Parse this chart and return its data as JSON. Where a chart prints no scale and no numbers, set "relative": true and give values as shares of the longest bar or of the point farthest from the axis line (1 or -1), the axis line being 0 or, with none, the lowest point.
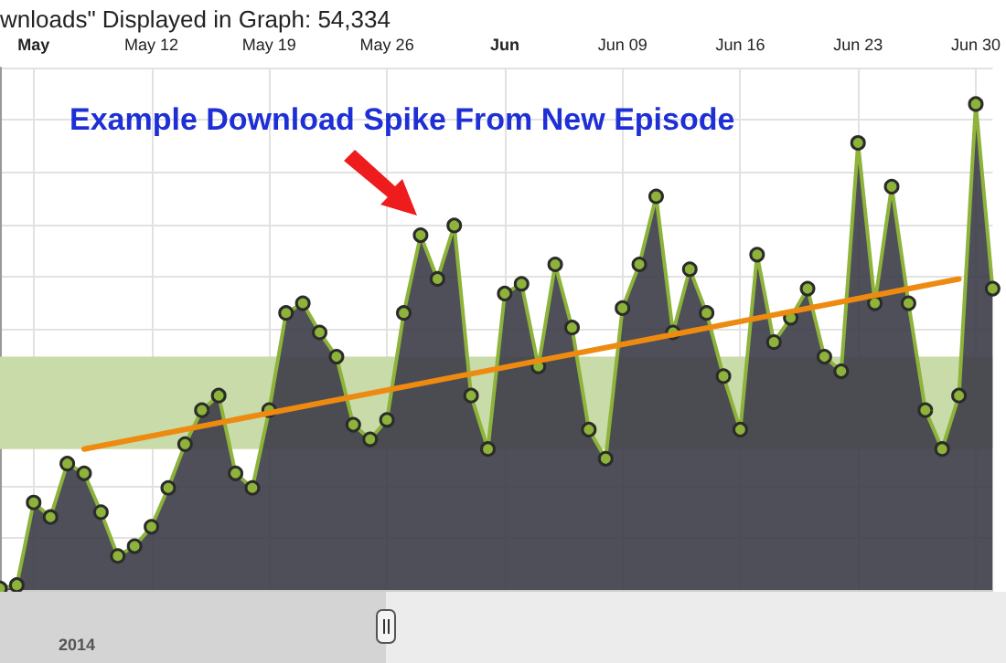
{
  "chart_data": {
    "type": "area",
    "relative": true,
    "title": "wnloads\" Displayed in Graph: 54,334",
    "annotations": [
      "Example Download Spike From New Episode",
      "2014"
    ],
    "x": [
      "2014-05-03",
      "2014-05-04",
      "2014-05-05",
      "2014-05-06",
      "2014-05-07",
      "2014-05-08",
      "2014-05-09",
      "2014-05-10",
      "2014-05-11",
      "2014-05-12",
      "2014-05-13",
      "2014-05-14",
      "2014-05-15",
      "2014-05-16",
      "2014-05-17",
      "2014-05-18",
      "2014-05-19",
      "2014-05-20",
      "2014-05-21",
      "2014-05-22",
      "2014-05-23",
      "2014-05-24",
      "2014-05-25",
      "2014-05-26",
      "2014-05-27",
      "2014-05-28",
      "2014-05-29",
      "2014-05-30",
      "2014-05-31",
      "2014-06-01",
      "2014-06-02",
      "2014-06-03",
      "2014-06-04",
      "2014-06-05",
      "2014-06-06",
      "2014-06-07",
      "2014-06-08",
      "2014-06-09",
      "2014-06-10",
      "2014-06-11",
      "2014-06-12",
      "2014-06-13",
      "2014-06-14",
      "2014-06-15",
      "2014-06-16",
      "2014-06-17",
      "2014-06-18",
      "2014-06-19",
      "2014-06-20",
      "2014-06-21",
      "2014-06-22",
      "2014-06-23",
      "2014-06-24",
      "2014-06-25",
      "2014-06-26",
      "2014-06-27",
      "2014-06-28",
      "2014-06-29",
      "2014-06-30",
      "2014-07-01"
    ],
    "series": [
      {
        "color": "#8db33a",
        "marker": "circle",
        "values": [
          0.003,
          0.01,
          0.18,
          0.15,
          0.26,
          0.24,
          0.16,
          0.07,
          0.09,
          0.13,
          0.21,
          0.3,
          0.37,
          0.4,
          0.24,
          0.21,
          0.37,
          0.57,
          0.59,
          0.53,
          0.48,
          0.34,
          0.31,
          0.35,
          0.57,
          0.73,
          0.64,
          0.75,
          0.4,
          0.29,
          0.61,
          0.63,
          0.46,
          0.67,
          0.54,
          0.33,
          0.27,
          0.58,
          0.67,
          0.81,
          0.53,
          0.66,
          0.57,
          0.44,
          0.33,
          0.69,
          0.51,
          0.56,
          0.62,
          0.48,
          0.45,
          0.92,
          0.59,
          0.83,
          0.59,
          0.37,
          0.29,
          0.4,
          1.0,
          0.62
        ]
      },
      {
        "type": "line",
        "color": "#ee8a10",
        "x": [
          "2014-05-08",
          "2014-06-29"
        ],
        "values": [
          0.29,
          0.64
        ]
      }
    ],
    "xlim": [
      "2014-05-03",
      "2014-07-01"
    ],
    "xticks": [
      {
        "value": "2014-05-05",
        "label": "May"
      },
      {
        "value": "2014-05-12",
        "label": "May 12"
      },
      {
        "value": "2014-05-19",
        "label": "May 19"
      },
      {
        "value": "2014-05-26",
        "label": "May 26"
      },
      {
        "value": "2014-06-02",
        "label": "Jun"
      },
      {
        "value": "2014-06-09",
        "label": "Jun 09"
      },
      {
        "value": "2014-06-16",
        "label": "Jun 16"
      },
      {
        "value": "2014-06-23",
        "label": "Jun 23"
      },
      {
        "value": "2014-06-30",
        "label": "Jun 30"
      }
    ],
    "bands": [
      {
        "axis": "y",
        "from": 0.29,
        "to": 0.48,
        "color": "#c8dba8"
      }
    ],
    "grid": true
  }
}
